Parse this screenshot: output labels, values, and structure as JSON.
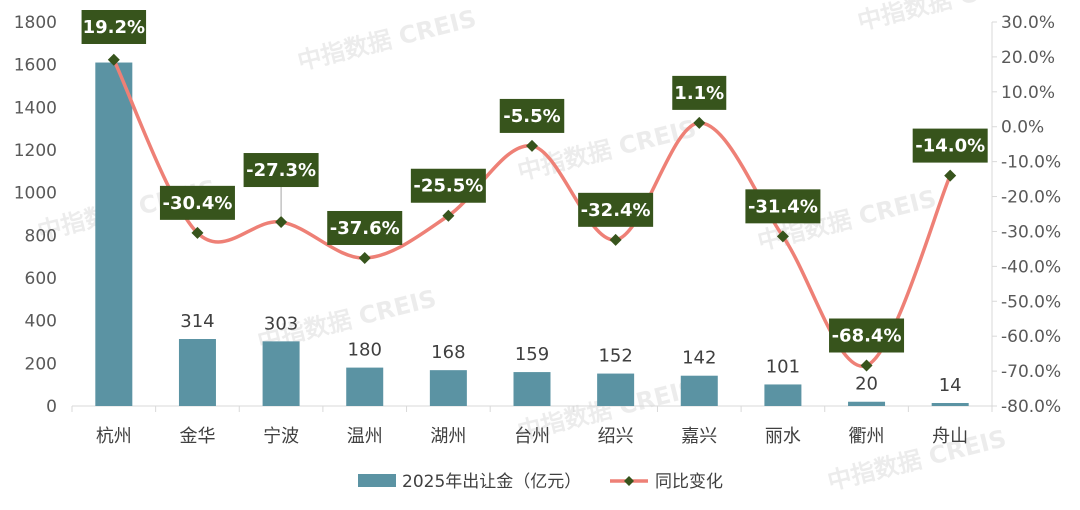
{
  "watermark": "中指数据 CREIS",
  "colors": {
    "bar": "#5b93a3",
    "line": "#ee8076",
    "marker": "#37541c",
    "label_bg": "#37541c"
  },
  "chart_data": {
    "type": "bar",
    "categories": [
      "杭州",
      "金华",
      "宁波",
      "温州",
      "湖州",
      "台州",
      "绍兴",
      "嘉兴",
      "丽水",
      "衢州",
      "舟山"
    ],
    "series": [
      {
        "name": "2025年出让金（亿元）",
        "type": "bar",
        "axis": "left",
        "values": [
          1610,
          314,
          303,
          180,
          168,
          159,
          152,
          142,
          101,
          20,
          14
        ],
        "labels": [
          "",
          "314",
          "303",
          "180",
          "168",
          "159",
          "152",
          "142",
          "101",
          "20",
          "14"
        ]
      },
      {
        "name": "同比变化",
        "type": "line",
        "axis": "right",
        "values": [
          19.2,
          -30.4,
          -27.3,
          -37.6,
          -25.5,
          -5.5,
          -32.4,
          1.1,
          -31.4,
          -68.4,
          -14.0
        ],
        "labels": [
          "19.2%",
          "-30.4%",
          "-27.3%",
          "-37.6%",
          "-25.5%",
          "-5.5%",
          "-32.4%",
          "1.1%",
          "-31.4%",
          "-68.4%",
          "-14.0%"
        ]
      }
    ],
    "y_left": {
      "range": [
        0,
        1800
      ],
      "ticks": [
        "0",
        "200",
        "400",
        "600",
        "800",
        "1000",
        "1200",
        "1400",
        "1600",
        "1800"
      ]
    },
    "y_right": {
      "range": [
        -80,
        30
      ],
      "ticks": [
        "-80.0%",
        "-70.0%",
        "-60.0%",
        "-50.0%",
        "-40.0%",
        "-30.0%",
        "-20.0%",
        "-10.0%",
        "0.0%",
        "10.0%",
        "20.0%",
        "30.0%"
      ]
    },
    "grid": false,
    "legend": "bottom"
  }
}
